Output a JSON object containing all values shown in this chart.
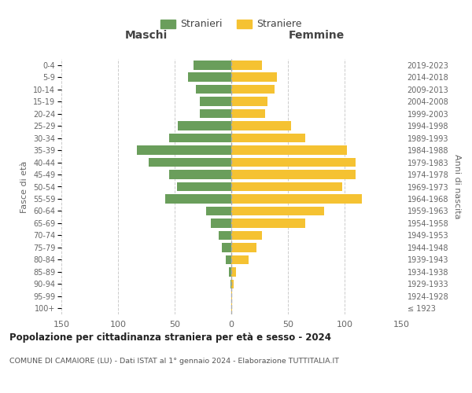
{
  "age_groups": [
    "100+",
    "95-99",
    "90-94",
    "85-89",
    "80-84",
    "75-79",
    "70-74",
    "65-69",
    "60-64",
    "55-59",
    "50-54",
    "45-49",
    "40-44",
    "35-39",
    "30-34",
    "25-29",
    "20-24",
    "15-19",
    "10-14",
    "5-9",
    "0-4"
  ],
  "birth_years": [
    "≤ 1923",
    "1924-1928",
    "1929-1933",
    "1934-1938",
    "1939-1943",
    "1944-1948",
    "1949-1953",
    "1954-1958",
    "1959-1963",
    "1964-1968",
    "1969-1973",
    "1974-1978",
    "1979-1983",
    "1984-1988",
    "1989-1993",
    "1994-1998",
    "1999-2003",
    "2004-2008",
    "2009-2013",
    "2014-2018",
    "2019-2023"
  ],
  "maschi": [
    0,
    0,
    1,
    2,
    5,
    8,
    11,
    18,
    22,
    58,
    48,
    55,
    73,
    83,
    55,
    47,
    28,
    28,
    31,
    38,
    33
  ],
  "femmine": [
    1,
    1,
    2,
    4,
    15,
    22,
    27,
    65,
    82,
    115,
    98,
    110,
    110,
    102,
    65,
    53,
    30,
    32,
    38,
    40,
    27
  ],
  "male_color": "#6a9e5b",
  "female_color": "#f5c232",
  "bar_height": 0.75,
  "xlim": 150,
  "title": "Popolazione per cittadinanza straniera per età e sesso - 2024",
  "subtitle": "COMUNE DI CAMAIORE (LU) - Dati ISTAT al 1° gennaio 2024 - Elaborazione TUTTITALIA.IT",
  "xlabel_left": "Maschi",
  "xlabel_right": "Femmine",
  "ylabel_left": "Fasce di età",
  "ylabel_right": "Anni di nascita",
  "legend_male": "Stranieri",
  "legend_female": "Straniere",
  "background_color": "#ffffff",
  "grid_color": "#cccccc"
}
